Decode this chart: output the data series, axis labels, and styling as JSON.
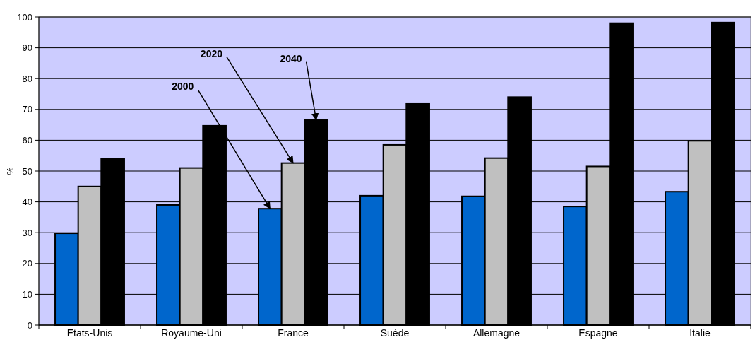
{
  "chart_data": {
    "type": "bar",
    "ylabel": "%",
    "categories": [
      "Etats-Unis",
      "Royaume-Uni",
      "France",
      "Suède",
      "Allemagne",
      "Espagne",
      "Italie"
    ],
    "series": [
      {
        "name": "2000",
        "color": "#0066cc",
        "values": [
          29.8,
          39,
          37.8,
          42,
          41.8,
          38.5,
          43.3
        ]
      },
      {
        "name": "2020",
        "color": "#c0c0c0",
        "values": [
          45,
          51,
          52.6,
          58.5,
          54.2,
          51.5,
          59.8
        ]
      },
      {
        "name": "2040",
        "color": "#000000",
        "values": [
          54,
          64.7,
          66.6,
          71.8,
          74,
          98,
          98.2
        ]
      }
    ],
    "ylim": [
      0,
      100
    ],
    "yticks": [
      0,
      10,
      20,
      30,
      40,
      50,
      60,
      70,
      80,
      90,
      100
    ],
    "grid": "y"
  }
}
